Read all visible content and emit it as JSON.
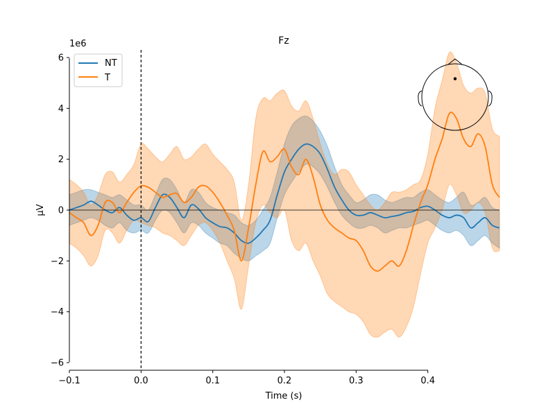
{
  "chart_data": {
    "type": "line",
    "title": "Fz",
    "xlabel": "Time (s)",
    "ylabel": "µV",
    "y_offset_label": "1e6",
    "xlim": [
      -0.1,
      0.5
    ],
    "ylim": [
      -6.3,
      6.3
    ],
    "x_ticks": [
      -0.1,
      0.0,
      0.1,
      0.2,
      0.3,
      0.4
    ],
    "x_tick_labels": [
      "−0.1",
      "0.0",
      "0.1",
      "0.2",
      "0.3",
      "0.4"
    ],
    "y_ticks": [
      -6,
      -4,
      -2,
      0,
      2,
      4,
      6
    ],
    "y_tick_labels": [
      "−6",
      "−4",
      "−2",
      "0",
      "2",
      "4",
      "6"
    ],
    "legend_position": "top-left",
    "event_marker_x": 0.0,
    "series": [
      {
        "name": "NT",
        "color": "#1f77b4",
        "points": [
          [
            -0.1,
            0.0
          ],
          [
            -0.09,
            0.1
          ],
          [
            -0.08,
            0.2
          ],
          [
            -0.07,
            0.35
          ],
          [
            -0.06,
            0.2
          ],
          [
            -0.05,
            0.0
          ],
          [
            -0.04,
            -0.1
          ],
          [
            -0.03,
            0.1
          ],
          [
            -0.02,
            -0.2
          ],
          [
            -0.01,
            -0.4
          ],
          [
            0.0,
            -0.3
          ],
          [
            0.01,
            -0.45
          ],
          [
            0.02,
            0.1
          ],
          [
            0.03,
            0.6
          ],
          [
            0.04,
            0.5
          ],
          [
            0.05,
            0.1
          ],
          [
            0.06,
            -0.3
          ],
          [
            0.07,
            0.2
          ],
          [
            0.08,
            0.05
          ],
          [
            0.09,
            -0.3
          ],
          [
            0.1,
            -0.5
          ],
          [
            0.11,
            -0.65
          ],
          [
            0.12,
            -0.7
          ],
          [
            0.13,
            -0.9
          ],
          [
            0.14,
            -1.2
          ],
          [
            0.15,
            -1.3
          ],
          [
            0.16,
            -1.1
          ],
          [
            0.17,
            -0.8
          ],
          [
            0.18,
            -0.4
          ],
          [
            0.19,
            0.6
          ],
          [
            0.2,
            1.5
          ],
          [
            0.21,
            2.0
          ],
          [
            0.22,
            2.4
          ],
          [
            0.23,
            2.6
          ],
          [
            0.24,
            2.5
          ],
          [
            0.25,
            2.2
          ],
          [
            0.26,
            1.6
          ],
          [
            0.27,
            0.9
          ],
          [
            0.28,
            0.4
          ],
          [
            0.29,
            0.0
          ],
          [
            0.3,
            -0.2
          ],
          [
            0.31,
            -0.2
          ],
          [
            0.32,
            -0.1
          ],
          [
            0.33,
            -0.2
          ],
          [
            0.34,
            -0.3
          ],
          [
            0.35,
            -0.25
          ],
          [
            0.36,
            -0.2
          ],
          [
            0.37,
            -0.1
          ],
          [
            0.38,
            -0.05
          ],
          [
            0.39,
            0.1
          ],
          [
            0.4,
            0.15
          ],
          [
            0.41,
            0.0
          ],
          [
            0.42,
            -0.2
          ],
          [
            0.43,
            -0.3
          ],
          [
            0.44,
            -0.2
          ],
          [
            0.45,
            -0.3
          ],
          [
            0.46,
            -0.7
          ],
          [
            0.47,
            -0.5
          ],
          [
            0.48,
            -0.3
          ],
          [
            0.49,
            -0.6
          ],
          [
            0.5,
            -0.7
          ]
        ],
        "band": [
          [
            -0.1,
            -0.6,
            0.6
          ],
          [
            -0.09,
            -0.5,
            0.7
          ],
          [
            -0.08,
            -0.4,
            0.8
          ],
          [
            -0.07,
            -0.3,
            0.8
          ],
          [
            -0.06,
            -0.4,
            0.7
          ],
          [
            -0.05,
            -0.6,
            0.6
          ],
          [
            -0.04,
            -0.7,
            0.5
          ],
          [
            -0.03,
            -0.5,
            0.6
          ],
          [
            -0.02,
            -0.8,
            0.4
          ],
          [
            -0.01,
            -0.9,
            0.2
          ],
          [
            0.0,
            -0.8,
            0.2
          ],
          [
            0.01,
            -0.9,
            0.0
          ],
          [
            0.02,
            -0.4,
            0.6
          ],
          [
            0.03,
            0.0,
            1.2
          ],
          [
            0.04,
            -0.1,
            1.2
          ],
          [
            0.05,
            -0.5,
            0.8
          ],
          [
            0.06,
            -0.9,
            0.3
          ],
          [
            0.07,
            -0.5,
            0.8
          ],
          [
            0.08,
            -0.6,
            0.7
          ],
          [
            0.09,
            -0.9,
            0.3
          ],
          [
            0.1,
            -1.1,
            0.1
          ],
          [
            0.11,
            -1.3,
            0.0
          ],
          [
            0.12,
            -1.4,
            -0.1
          ],
          [
            0.13,
            -1.7,
            -0.2
          ],
          [
            0.14,
            -1.9,
            -0.5
          ],
          [
            0.15,
            -2.0,
            -0.6
          ],
          [
            0.16,
            -1.8,
            -0.4
          ],
          [
            0.17,
            -1.6,
            0.0
          ],
          [
            0.18,
            -1.3,
            0.5
          ],
          [
            0.19,
            -0.3,
            1.5
          ],
          [
            0.2,
            0.6,
            2.6
          ],
          [
            0.21,
            1.1,
            3.3
          ],
          [
            0.22,
            1.5,
            3.6
          ],
          [
            0.23,
            1.8,
            3.7
          ],
          [
            0.24,
            1.7,
            3.5
          ],
          [
            0.25,
            1.4,
            3.1
          ],
          [
            0.26,
            0.9,
            2.5
          ],
          [
            0.27,
            0.3,
            1.7
          ],
          [
            0.28,
            -0.2,
            1.0
          ],
          [
            0.29,
            -0.5,
            0.6
          ],
          [
            0.3,
            -0.7,
            0.3
          ],
          [
            0.31,
            -0.7,
            0.4
          ],
          [
            0.32,
            -0.6,
            0.6
          ],
          [
            0.33,
            -0.7,
            0.6
          ],
          [
            0.34,
            -0.9,
            0.4
          ],
          [
            0.35,
            -0.8,
            0.3
          ],
          [
            0.36,
            -0.7,
            0.4
          ],
          [
            0.37,
            -0.7,
            0.5
          ],
          [
            0.38,
            -0.6,
            0.5
          ],
          [
            0.39,
            -0.5,
            0.7
          ],
          [
            0.4,
            -0.4,
            0.8
          ],
          [
            0.41,
            -0.6,
            0.6
          ],
          [
            0.42,
            -0.8,
            0.4
          ],
          [
            0.43,
            -0.9,
            0.3
          ],
          [
            0.44,
            -0.8,
            0.5
          ],
          [
            0.45,
            -1.0,
            0.7
          ],
          [
            0.46,
            -1.4,
            0.2
          ],
          [
            0.47,
            -1.2,
            0.3
          ],
          [
            0.48,
            -1.0,
            0.5
          ],
          [
            0.49,
            -1.3,
            0.1
          ],
          [
            0.5,
            -1.5,
            0.0
          ]
        ]
      },
      {
        "name": "T",
        "color": "#ff7f0e",
        "points": [
          [
            -0.1,
            -0.1
          ],
          [
            -0.09,
            -0.3
          ],
          [
            -0.08,
            -0.5
          ],
          [
            -0.07,
            -1.0
          ],
          [
            -0.06,
            -0.6
          ],
          [
            -0.05,
            0.3
          ],
          [
            -0.04,
            0.3
          ],
          [
            -0.03,
            -0.1
          ],
          [
            -0.02,
            0.3
          ],
          [
            -0.01,
            0.7
          ],
          [
            0.0,
            0.95
          ],
          [
            0.01,
            0.9
          ],
          [
            0.02,
            0.7
          ],
          [
            0.03,
            0.5
          ],
          [
            0.04,
            0.6
          ],
          [
            0.05,
            0.65
          ],
          [
            0.06,
            0.3
          ],
          [
            0.07,
            0.5
          ],
          [
            0.08,
            0.9
          ],
          [
            0.09,
            0.95
          ],
          [
            0.1,
            0.7
          ],
          [
            0.11,
            0.3
          ],
          [
            0.12,
            -0.2
          ],
          [
            0.13,
            -0.8
          ],
          [
            0.14,
            -2.0
          ],
          [
            0.15,
            -0.7
          ],
          [
            0.16,
            1.0
          ],
          [
            0.17,
            2.3
          ],
          [
            0.18,
            1.9
          ],
          [
            0.19,
            2.1
          ],
          [
            0.2,
            2.4
          ],
          [
            0.21,
            1.7
          ],
          [
            0.22,
            1.4
          ],
          [
            0.23,
            2.0
          ],
          [
            0.24,
            1.3
          ],
          [
            0.25,
            0.2
          ],
          [
            0.26,
            -0.4
          ],
          [
            0.27,
            -0.7
          ],
          [
            0.28,
            -0.9
          ],
          [
            0.29,
            -1.1
          ],
          [
            0.3,
            -1.2
          ],
          [
            0.31,
            -1.6
          ],
          [
            0.32,
            -2.2
          ],
          [
            0.33,
            -2.4
          ],
          [
            0.34,
            -2.2
          ],
          [
            0.35,
            -2.0
          ],
          [
            0.36,
            -2.2
          ],
          [
            0.37,
            -1.6
          ],
          [
            0.38,
            -0.6
          ],
          [
            0.39,
            0.3
          ],
          [
            0.4,
            1.0
          ],
          [
            0.41,
            2.0
          ],
          [
            0.42,
            2.8
          ],
          [
            0.43,
            3.8
          ],
          [
            0.44,
            3.6
          ],
          [
            0.45,
            2.8
          ],
          [
            0.46,
            2.5
          ],
          [
            0.47,
            3.0
          ],
          [
            0.48,
            2.5
          ],
          [
            0.49,
            1.0
          ],
          [
            0.5,
            0.5
          ]
        ],
        "band": [
          [
            -0.1,
            -1.3,
            1.2
          ],
          [
            -0.09,
            -1.5,
            1.0
          ],
          [
            -0.08,
            -1.8,
            0.7
          ],
          [
            -0.07,
            -2.2,
            0.2
          ],
          [
            -0.06,
            -1.8,
            0.6
          ],
          [
            -0.05,
            -0.8,
            1.4
          ],
          [
            -0.04,
            -0.9,
            1.5
          ],
          [
            -0.03,
            -1.3,
            1.1
          ],
          [
            -0.02,
            -0.8,
            1.4
          ],
          [
            -0.01,
            -0.4,
            1.8
          ],
          [
            0.0,
            -0.5,
            2.6
          ],
          [
            0.01,
            -0.6,
            2.4
          ],
          [
            0.02,
            -0.7,
            2.1
          ],
          [
            0.03,
            -0.9,
            1.9
          ],
          [
            0.04,
            -1.0,
            2.2
          ],
          [
            0.05,
            -1.2,
            2.5
          ],
          [
            0.06,
            -1.4,
            2.0
          ],
          [
            0.07,
            -1.0,
            2.1
          ],
          [
            0.08,
            -0.6,
            2.4
          ],
          [
            0.09,
            -0.5,
            2.6
          ],
          [
            0.1,
            -0.8,
            2.2
          ],
          [
            0.11,
            -1.3,
            1.9
          ],
          [
            0.12,
            -2.0,
            1.6
          ],
          [
            0.13,
            -2.7,
            1.1
          ],
          [
            0.14,
            -3.9,
            -0.4
          ],
          [
            0.15,
            -2.2,
            1.0
          ],
          [
            0.16,
            -0.5,
            3.6
          ],
          [
            0.17,
            0.2,
            4.4
          ],
          [
            0.18,
            -0.1,
            4.3
          ],
          [
            0.19,
            -0.3,
            4.6
          ],
          [
            0.2,
            0.0,
            4.7
          ],
          [
            0.21,
            -1.2,
            4.1
          ],
          [
            0.22,
            -1.6,
            3.9
          ],
          [
            0.23,
            -1.3,
            4.3
          ],
          [
            0.24,
            -2.0,
            3.6
          ],
          [
            0.25,
            -2.6,
            2.6
          ],
          [
            0.26,
            -3.3,
            1.8
          ],
          [
            0.27,
            -3.6,
            1.4
          ],
          [
            0.28,
            -3.8,
            1.6
          ],
          [
            0.29,
            -4.0,
            1.5
          ],
          [
            0.3,
            -4.1,
            1.0
          ],
          [
            0.31,
            -4.4,
            0.6
          ],
          [
            0.32,
            -4.9,
            0.2
          ],
          [
            0.33,
            -5.0,
            0.0
          ],
          [
            0.34,
            -4.8,
            0.3
          ],
          [
            0.35,
            -4.7,
            0.7
          ],
          [
            0.36,
            -5.0,
            0.7
          ],
          [
            0.37,
            -4.6,
            0.8
          ],
          [
            0.38,
            -3.8,
            1.0
          ],
          [
            0.39,
            -2.5,
            1.2
          ],
          [
            0.4,
            -1.3,
            2.2
          ],
          [
            0.41,
            -0.7,
            4.0
          ],
          [
            0.42,
            0.0,
            5.1
          ],
          [
            0.43,
            1.0,
            6.2
          ],
          [
            0.44,
            0.6,
            5.8
          ],
          [
            0.45,
            -0.1,
            4.9
          ],
          [
            0.46,
            0.0,
            4.6
          ],
          [
            0.47,
            0.3,
            4.8
          ],
          [
            0.48,
            -0.1,
            4.6
          ],
          [
            0.49,
            -1.5,
            3.2
          ],
          [
            0.5,
            -1.6,
            2.9
          ]
        ]
      }
    ],
    "inset": {
      "type": "head-sensor-map",
      "channel_marker": [
        0.0,
        0.55
      ]
    }
  }
}
